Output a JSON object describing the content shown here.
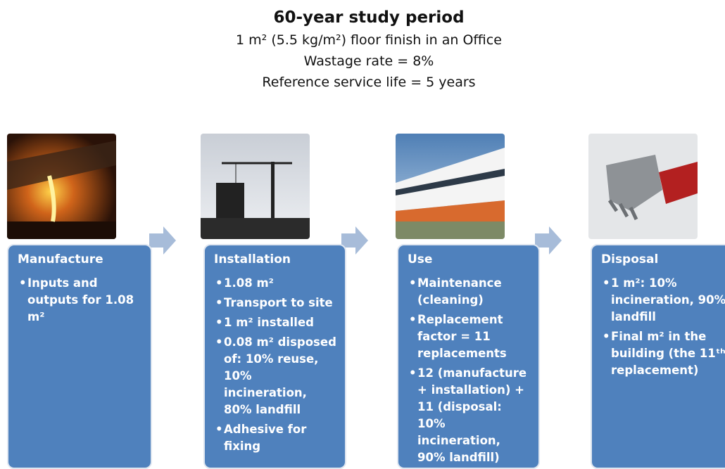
{
  "header": {
    "title": "60-year study period",
    "lines": [
      "1 m² (5.5 kg/m²) floor finish in an Office",
      "Wastage rate = 8%",
      "Reference service life = 5 years"
    ]
  },
  "stages": [
    {
      "title": "Manufacture",
      "bullets": [
        "Inputs and outputs for 1.08 m²"
      ]
    },
    {
      "title": "Installation",
      "bullets": [
        "1.08 m²",
        "Transport to site",
        "1 m² installed",
        "0.08 m² disposed of: 10% reuse, 10% incineration, 80% landfill",
        "Adhesive for fixing"
      ]
    },
    {
      "title": "Use",
      "bullets": [
        "Maintenance (cleaning)",
        "Replacement factor = 11 replacements",
        "12 (manufacture + installation) + 11 (disposal: 10% incineration, 90% landfill)"
      ]
    },
    {
      "title": "Disposal",
      "bullets": [
        "1 m²: 10% incineration, 90% landfill",
        "Final m² in the building (the 11ᵗʰ replacement)"
      ]
    }
  ]
}
